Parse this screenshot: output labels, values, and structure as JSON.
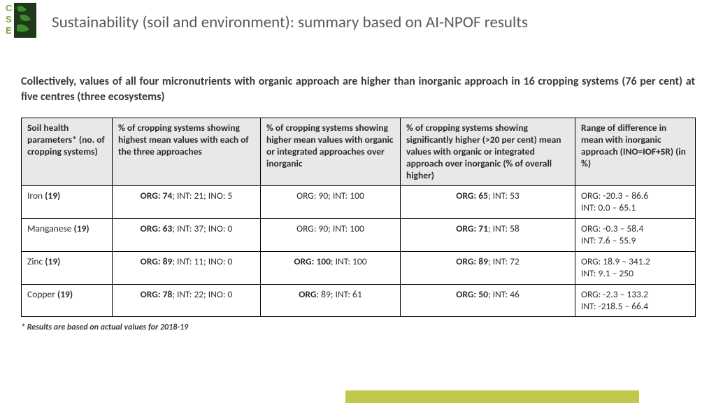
{
  "title": "Sustainability  (soil and environment): summary based on AI-NPOF results",
  "intro": "Collectively, values of all four micronutrients with organic approach are higher than inorganic approach in 16 cropping systems (76 per cent) at five centres (three ecosystems)",
  "footnote": "* Results are based on actual values for 2018-19",
  "logo": {
    "letters": [
      "C",
      "S",
      "E"
    ],
    "letter_color": "#7aa23d",
    "leaf_dark": "#1e3a1a",
    "leaf_light": "#3d8b2f"
  },
  "bar_color": "#c0c94b",
  "table": {
    "headers": [
      "Soil health parameters* (no. of cropping systems)",
      "% of cropping systems showing highest mean values with each of the three approaches",
      "% of cropping systems showing higher mean values with organic or integrated approaches over inorganic",
      "% of cropping systems showing significantly higher (>20 per cent) mean values with organic or integrated approach over inorganic (% of overall higher)",
      "Range of difference in mean with inorganic approach (INO=IOF+SR) (in %)"
    ],
    "rows": [
      {
        "p": "Iron",
        "n": "(19)",
        "c1b": "ORG: 74",
        "c1": "; INT: 21; INO: 5",
        "c2b": "",
        "c2": "ORG: 90; INT: 100",
        "c3b": "ORG: 65",
        "c3": "; INT: 53",
        "c4a": "ORG: -20.3 – 86.6",
        "c4b": "INT: 0.0 – 65.1"
      },
      {
        "p": "Manganese",
        "n": "(19)",
        "c1b": "ORG: 63",
        "c1": "; INT: 37; INO: 0",
        "c2b": "",
        "c2": "ORG: 90; INT: 100",
        "c3b": "ORG: 71",
        "c3": "; INT: 58",
        "c4a": "ORG: -0.3 – 58.4",
        "c4b": "INT: 7.6 – 55.9"
      },
      {
        "p": "Zinc",
        "n": "(19)",
        "c1b": "ORG: 89",
        "c1": "; INT: 11; INO: 0",
        "c2b": "ORG: 100",
        "c2": "; INT: 100",
        "c3b": "ORG: 89",
        "c3": "; INT: 72",
        "c4a": "ORG: 18.9 – 341.2",
        "c4b": "INT: 9.1 – 250"
      },
      {
        "p": "Copper",
        "n": "(19)",
        "c1b": "ORG: 78",
        "c1": "; INT: 22; INO: 0",
        "c2b": "ORG",
        "c2": ": 89; INT: 61",
        "c3b": "ORG: 50",
        "c3": "; INT: 46",
        "c4a": "ORG: -2.3 – 133.2",
        "c4b": "INT: -218.5 – 66.4"
      }
    ]
  }
}
